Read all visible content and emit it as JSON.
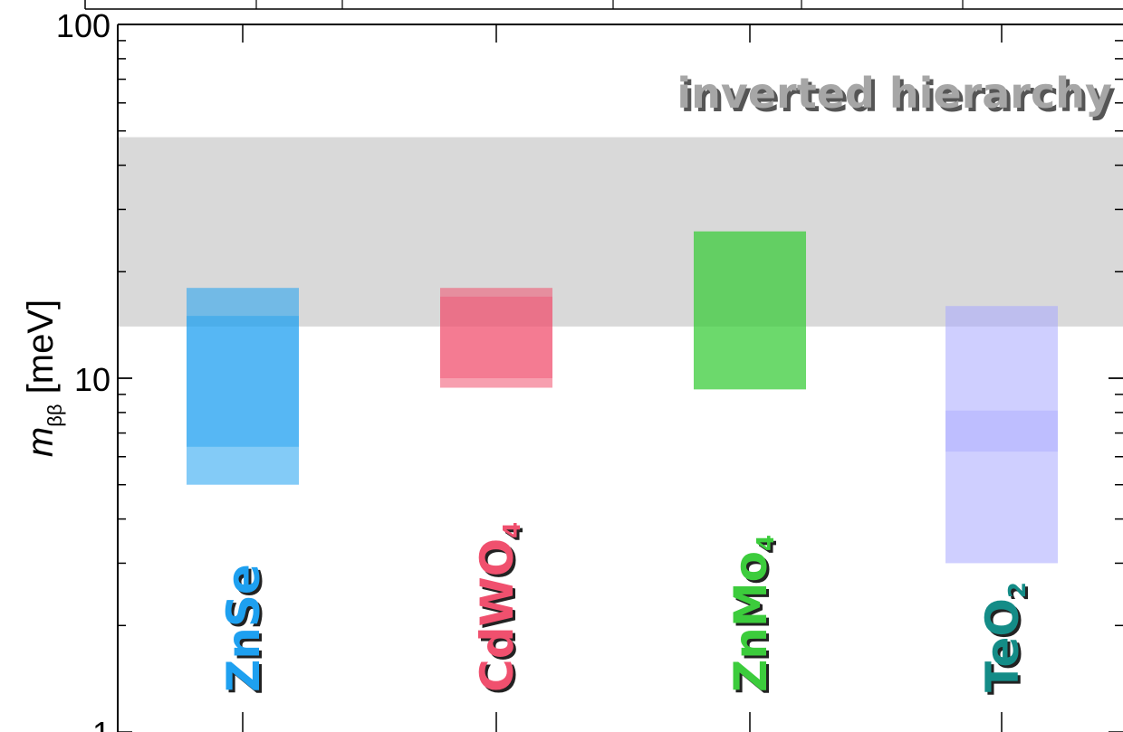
{
  "chart_data": {
    "type": "bar",
    "scale": "log",
    "ylabel": {
      "symbol": "m",
      "subscript": "ββ",
      "unit": "[meV]"
    },
    "ylim": [
      1,
      100
    ],
    "y_ticks": [
      "1",
      "10",
      "100"
    ],
    "grid": false,
    "band": {
      "label": "inverted hierarchy",
      "range": [
        14,
        48
      ],
      "color": "#d9d9d9",
      "text_color": "#a6a6a6"
    },
    "categories": [
      {
        "name": "ZnSe",
        "label_main": "ZnSe",
        "label_sub": "",
        "color": "#1ea0f0",
        "outer": [
          5,
          18
        ],
        "inner": [
          6.4,
          15
        ]
      },
      {
        "name": "CdWO4",
        "label_main": "CdWO",
        "label_sub": "4",
        "color": "#f0506e",
        "outer": [
          9.4,
          18
        ],
        "inner": [
          10,
          17
        ]
      },
      {
        "name": "ZnMo4",
        "label_main": "ZnMo",
        "label_sub": "4",
        "color": "#3ccc3c",
        "outer": [
          9.3,
          26
        ],
        "inner": [
          9.3,
          26
        ]
      },
      {
        "name": "TeO2",
        "label_main": "TeO",
        "label_sub": "2",
        "color": "#148c87",
        "bar_color": "#a8a8ff",
        "outer": [
          3,
          16
        ],
        "inner": [
          6.2,
          8.1
        ]
      }
    ]
  }
}
